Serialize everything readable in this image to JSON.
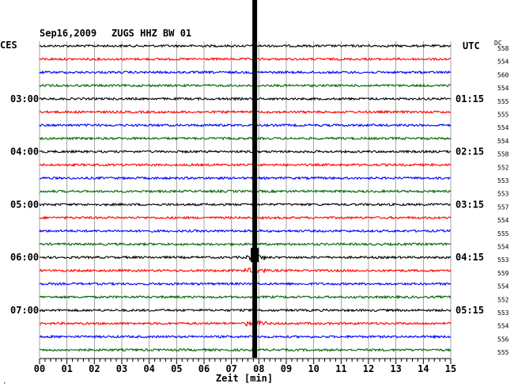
{
  "header": {
    "date": "Sep16,2009",
    "station": "ZUGS HHZ BW 01",
    "left_label": "CES",
    "right_label": "UTC",
    "dc_label": "DC"
  },
  "colors": {
    "trace_cycle": [
      "#000000",
      "#ff0000",
      "#0000ff",
      "#006400"
    ],
    "grid": "#808080",
    "marker": "#000000"
  },
  "chart_data": {
    "type": "line",
    "title": "Sep16,2009   ZUGS HHZ BW 01",
    "xlabel": "Zeit [min]",
    "xlim": [
      0,
      15
    ],
    "x_ticks": [
      "00",
      "01",
      "02",
      "03",
      "04",
      "05",
      "06",
      "07",
      "08",
      "09",
      "10",
      "11",
      "12",
      "13",
      "14",
      "15"
    ],
    "marker_x_min": 7.85,
    "left_time_labels": [
      {
        "row": 4,
        "label": "03:00"
      },
      {
        "row": 8,
        "label": "04:00"
      },
      {
        "row": 12,
        "label": "05:00"
      },
      {
        "row": 16,
        "label": "06:00"
      },
      {
        "row": 20,
        "label": "07:00"
      }
    ],
    "right_time_labels": [
      {
        "row": 4,
        "label": "01:15"
      },
      {
        "row": 8,
        "label": "02:15"
      },
      {
        "row": 12,
        "label": "03:15"
      },
      {
        "row": 16,
        "label": "04:15"
      },
      {
        "row": 20,
        "label": "05:15"
      }
    ],
    "dc_values": [
      "558",
      "554",
      "560",
      "554",
      "555",
      "555",
      "554",
      "554",
      "558",
      "552",
      "553",
      "553",
      "557",
      "554",
      "555",
      "554",
      "553",
      "559",
      "554",
      "552",
      "553",
      "554",
      "556",
      "555"
    ],
    "event_rows": [
      16,
      17,
      21
    ]
  },
  "footer": {
    "corner_mark": "·"
  }
}
